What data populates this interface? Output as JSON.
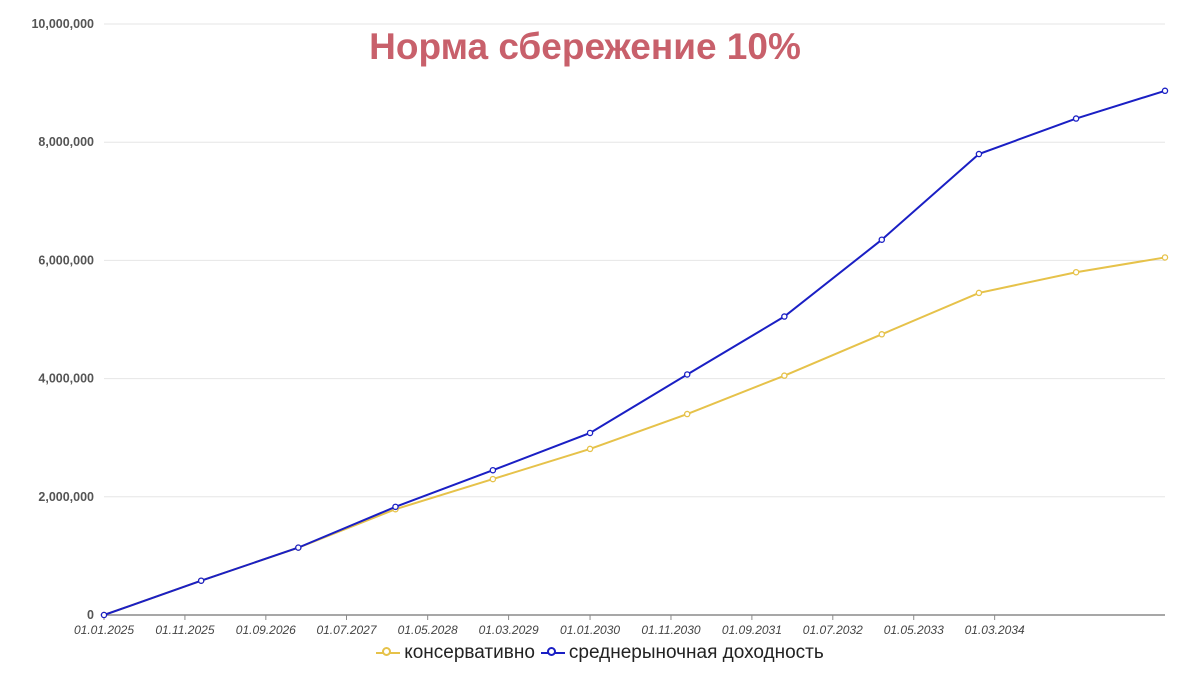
{
  "chart_data": {
    "type": "line",
    "title": "Норма сбережение 10%",
    "xlabel": "",
    "ylabel": "",
    "ylim": [
      0,
      10000000
    ],
    "y_ticks": [
      "0",
      "2,000,000",
      "4,000,000",
      "6,000,000",
      "8,000,000",
      "10,000,000"
    ],
    "x_ticks": [
      "01.01.2025",
      "01.11.2025",
      "01.09.2026",
      "01.07.2027",
      "01.05.2028",
      "01.03.2029",
      "01.01.2030",
      "01.11.2030",
      "01.09.2031",
      "01.07.2032",
      "01.05.2033",
      "01.03.2034"
    ],
    "x_range": [
      "01.01.2025",
      "01.12.2035"
    ],
    "grid": "horizontal",
    "legend_position": "bottom",
    "colors": {
      "title": "#c8606b",
      "conservative": "#e6c24a",
      "market": "#1a1fc4",
      "grid": "#e6e6e6",
      "axis": "#8a8a8a"
    },
    "series": [
      {
        "name": "консервативно",
        "color": "#e6c24a",
        "x": [
          "01.01.2025",
          "01.01.2026",
          "01.01.2027",
          "01.01.2028",
          "01.01.2029",
          "01.01.2030",
          "01.01.2031",
          "01.01.2032",
          "01.01.2033",
          "01.01.2034",
          "01.01.2035",
          "01.12.2035"
        ],
        "y": [
          0,
          580000,
          1140000,
          1790000,
          2300000,
          2810000,
          3400000,
          4050000,
          4750000,
          5450000,
          5800000,
          6050000
        ]
      },
      {
        "name": "среднерыночная доходность",
        "color": "#1a1fc4",
        "x": [
          "01.01.2025",
          "01.01.2026",
          "01.01.2027",
          "01.01.2028",
          "01.01.2029",
          "01.01.2030",
          "01.01.2031",
          "01.01.2032",
          "01.01.2033",
          "01.01.2034",
          "01.01.2035",
          "01.12.2035"
        ],
        "y": [
          0,
          580000,
          1140000,
          1830000,
          2450000,
          3080000,
          4070000,
          5050000,
          6350000,
          7800000,
          8400000,
          8870000
        ]
      }
    ]
  }
}
